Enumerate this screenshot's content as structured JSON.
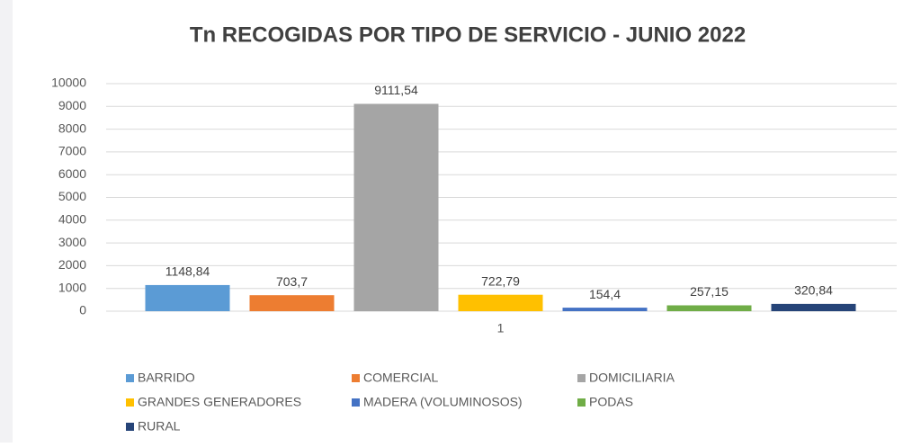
{
  "chart_data": {
    "type": "bar",
    "title": "Tn RECOGIDAS POR TIPO DE SERVICIO - JUNIO 2022",
    "categories": [
      "1"
    ],
    "series": [
      {
        "name": "BARRIDO",
        "color": "#5b9bd5",
        "values": [
          1148.84
        ],
        "value_labels": [
          "1148,84"
        ]
      },
      {
        "name": "COMERCIAL",
        "color": "#ed7d31",
        "values": [
          703.7
        ],
        "value_labels": [
          "703,7"
        ]
      },
      {
        "name": "DOMICILIARIA",
        "color": "#a5a5a5",
        "values": [
          9111.54
        ],
        "value_labels": [
          "9111,54"
        ]
      },
      {
        "name": "GRANDES GENERADORES",
        "color": "#ffc000",
        "values": [
          722.79
        ],
        "value_labels": [
          "722,79"
        ]
      },
      {
        "name": "MADERA (VOLUMINOSOS)",
        "color": "#4472c4",
        "values": [
          154.4
        ],
        "value_labels": [
          "154,4"
        ]
      },
      {
        "name": "PODAS",
        "color": "#70ad47",
        "values": [
          257.15
        ],
        "value_labels": [
          "257,15"
        ]
      },
      {
        "name": "RURAL",
        "color": "#264478",
        "values": [
          320.84
        ],
        "value_labels": [
          "320,84"
        ]
      }
    ],
    "ylim": [
      0,
      10000
    ],
    "yticks": [
      0,
      1000,
      2000,
      3000,
      4000,
      5000,
      6000,
      7000,
      8000,
      9000,
      10000
    ],
    "grid": true,
    "legend": "bottom"
  }
}
